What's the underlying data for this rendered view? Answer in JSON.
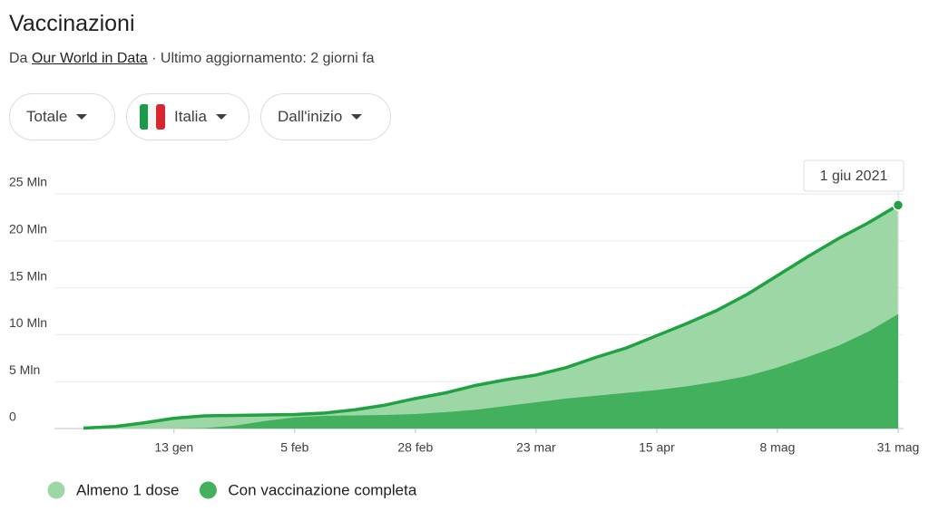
{
  "header": {
    "title": "Vaccinazioni",
    "source_prefix": "Da",
    "source_link": "Our World in Data",
    "updated": "· Ultimo aggiornamento: 2 giorni fa"
  },
  "filters": [
    "Totale",
    "Italia",
    "Dall'inizio"
  ],
  "chart_data": {
    "type": "area",
    "annotation": "1 giu 2021",
    "categories": [
      null,
      null,
      null,
      "13 gen",
      null,
      null,
      null,
      "5 feb",
      null,
      null,
      null,
      "28 feb",
      null,
      null,
      null,
      "23 mar",
      null,
      null,
      null,
      "15 apr",
      null,
      null,
      null,
      "8 mag",
      null,
      null,
      null,
      "31 mag"
    ],
    "series": [
      {
        "name": "Almeno 1 dose",
        "color": "#9ed7a6",
        "line_color": "#20a142",
        "values": [
          0.05,
          0.2,
          0.6,
          1.1,
          1.35,
          1.4,
          1.45,
          1.5,
          1.65,
          2.0,
          2.5,
          3.2,
          3.8,
          4.6,
          5.2,
          5.7,
          6.5,
          7.6,
          8.6,
          9.9,
          11.2,
          12.6,
          14.3,
          16.3,
          18.3,
          20.2,
          21.9,
          23.8
        ]
      },
      {
        "name": "Con vaccinazione completa",
        "color": "#42b05c",
        "values": [
          0,
          0,
          0,
          0,
          0.05,
          0.3,
          0.8,
          1.2,
          1.35,
          1.4,
          1.45,
          1.55,
          1.75,
          2.0,
          2.4,
          2.8,
          3.2,
          3.5,
          3.8,
          4.1,
          4.5,
          5.0,
          5.6,
          6.5,
          7.6,
          8.8,
          10.3,
          12.2
        ]
      }
    ],
    "ylim": [
      0,
      25
    ],
    "yticks": [
      0,
      {
        "value": 5,
        "label": "5 Mln"
      },
      {
        "value": 10,
        "label": "10 Mln"
      },
      {
        "value": 15,
        "label": "15 Mln"
      },
      {
        "value": 20,
        "label": "20 Mln"
      },
      {
        "value": 25,
        "label": "25 Mln"
      }
    ],
    "grid": true
  }
}
